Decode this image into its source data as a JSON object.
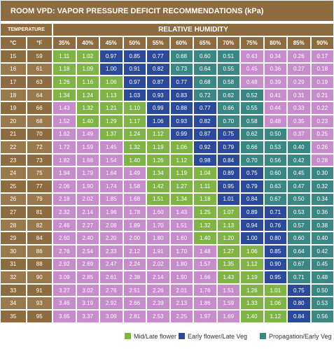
{
  "title": "ROOM VPD: VAPOR PRESSURE DEFICIT RECOMMENDATIONS (kPa)",
  "header": {
    "temperature": "TEMPERATURE",
    "humidity": "RELATIVE HUMIDITY",
    "units": [
      "°C",
      "°F"
    ],
    "columns": [
      "35%",
      "40%",
      "45%",
      "50%",
      "55%",
      "60%",
      "65%",
      "70%",
      "75%",
      "80%",
      "85%",
      "90%"
    ]
  },
  "palette": {
    "pink": "#c78ccb",
    "green": "#80b447",
    "blue": "#2c4a9a",
    "teal": "#3b8783"
  },
  "rows": [
    {
      "c": "15",
      "f": "59",
      "values": [
        "1.11",
        "1.02",
        "0.97",
        "0.85",
        "0.77",
        "0.68",
        "0.60",
        "0.51",
        "0.43",
        "0.34",
        "0.26",
        "0.17"
      ],
      "zones": [
        "green",
        "green",
        "blue",
        "blue",
        "blue",
        "teal",
        "teal",
        "teal",
        "pink",
        "pink",
        "pink",
        "pink"
      ]
    },
    {
      "c": "16",
      "f": "61",
      "values": [
        "1.18",
        "1.09",
        "1.00",
        "0.91",
        "0.82",
        "0.73",
        "0.64",
        "0.55",
        "0.45",
        "0.36",
        "0.27",
        "0.18"
      ],
      "zones": [
        "green",
        "green",
        "blue",
        "blue",
        "blue",
        "teal",
        "teal",
        "teal",
        "pink",
        "pink",
        "pink",
        "pink"
      ]
    },
    {
      "c": "17",
      "f": "63",
      "values": [
        "1.26",
        "1.16",
        "1.06",
        "0.97",
        "0.87",
        "0.77",
        "0.68",
        "0.58",
        "0.48",
        "0.39",
        "0.29",
        "0.19"
      ],
      "zones": [
        "green",
        "green",
        "green",
        "blue",
        "blue",
        "blue",
        "teal",
        "teal",
        "pink",
        "pink",
        "pink",
        "pink"
      ]
    },
    {
      "c": "18",
      "f": "64",
      "values": [
        "1.34",
        "1.24",
        "1.13",
        "1.03",
        "0.93",
        "0.83",
        "0.72",
        "0.62",
        "0.52",
        "0.41",
        "0.31",
        "0.21"
      ],
      "zones": [
        "green",
        "green",
        "green",
        "blue",
        "blue",
        "blue",
        "teal",
        "teal",
        "teal",
        "pink",
        "pink",
        "pink"
      ]
    },
    {
      "c": "19",
      "f": "66",
      "values": [
        "1.43",
        "1.32",
        "1.21",
        "1.10",
        "0.99",
        "0.88",
        "0.77",
        "0.66",
        "0.55",
        "0.44",
        "0.33",
        "0.22"
      ],
      "zones": [
        "pink",
        "green",
        "green",
        "green",
        "blue",
        "blue",
        "blue",
        "teal",
        "teal",
        "pink",
        "pink",
        "pink"
      ]
    },
    {
      "c": "20",
      "f": "68",
      "values": [
        "1.52",
        "1.40",
        "1.29",
        "1.17",
        "1.06",
        "0.93",
        "0.82",
        "0.70",
        "0.58",
        "0.48",
        "0.35",
        "0.23"
      ],
      "zones": [
        "pink",
        "green",
        "green",
        "green",
        "blue",
        "blue",
        "blue",
        "teal",
        "teal",
        "pink",
        "pink",
        "pink"
      ]
    },
    {
      "c": "21",
      "f": "70",
      "values": [
        "1.62",
        "1.49",
        "1.37",
        "1.24",
        "1.12",
        "0.99",
        "0.87",
        "0.75",
        "0.62",
        "0.50",
        "0.37",
        "0.25"
      ],
      "zones": [
        "pink",
        "pink",
        "green",
        "green",
        "green",
        "blue",
        "blue",
        "blue",
        "teal",
        "teal",
        "pink",
        "pink"
      ]
    },
    {
      "c": "22",
      "f": "72",
      "values": [
        "1.72",
        "1.59",
        "1.45",
        "1.32",
        "1.19",
        "1.06",
        "0.92",
        "0.79",
        "0.66",
        "0.53",
        "0.40",
        "0.26"
      ],
      "zones": [
        "pink",
        "pink",
        "pink",
        "green",
        "green",
        "green",
        "blue",
        "blue",
        "teal",
        "teal",
        "teal",
        "pink"
      ]
    },
    {
      "c": "23",
      "f": "73",
      "values": [
        "1.82",
        "1.68",
        "1.54",
        "1.40",
        "1.26",
        "1.12",
        "0.98",
        "0.84",
        "0.70",
        "0.56",
        "0.42",
        "0.28"
      ],
      "zones": [
        "pink",
        "pink",
        "pink",
        "green",
        "green",
        "green",
        "blue",
        "blue",
        "teal",
        "teal",
        "teal",
        "pink"
      ]
    },
    {
      "c": "24",
      "f": "75",
      "values": [
        "1.94",
        "1.79",
        "1.64",
        "1.49",
        "1.34",
        "1.19",
        "1.04",
        "0.89",
        "0.75",
        "0.60",
        "0.45",
        "0.30"
      ],
      "zones": [
        "pink",
        "pink",
        "pink",
        "pink",
        "green",
        "green",
        "green",
        "blue",
        "blue",
        "teal",
        "teal",
        "teal"
      ]
    },
    {
      "c": "25",
      "f": "77",
      "values": [
        "2.06",
        "1.90",
        "1.74",
        "1.58",
        "1.42",
        "1.27",
        "1.11",
        "0.95",
        "0.79",
        "0.63",
        "0.47",
        "0.32"
      ],
      "zones": [
        "pink",
        "pink",
        "pink",
        "pink",
        "green",
        "green",
        "green",
        "blue",
        "blue",
        "teal",
        "teal",
        "teal"
      ]
    },
    {
      "c": "26",
      "f": "79",
      "values": [
        "2.18",
        "2.02",
        "1.85",
        "1.68",
        "1.51",
        "1.34",
        "1.18",
        "1.01",
        "0.84",
        "0.67",
        "0.50",
        "0.34"
      ],
      "zones": [
        "pink",
        "pink",
        "pink",
        "pink",
        "green",
        "green",
        "green",
        "blue",
        "blue",
        "teal",
        "teal",
        "teal"
      ]
    },
    {
      "c": "27",
      "f": "81",
      "values": [
        "2.32",
        "2.14",
        "1.96",
        "1.78",
        "1.60",
        "1.43",
        "1.25",
        "1.07",
        "0.89",
        "0.71",
        "0.53",
        "0.36"
      ],
      "zones": [
        "pink",
        "pink",
        "pink",
        "pink",
        "pink",
        "pink",
        "green",
        "green",
        "blue",
        "blue",
        "teal",
        "teal"
      ]
    },
    {
      "c": "28",
      "f": "82",
      "values": [
        "2.46",
        "2.27",
        "2.08",
        "1.89",
        "1.70",
        "1.51",
        "1.32",
        "1.13",
        "0.94",
        "0.76",
        "0.57",
        "0.38"
      ],
      "zones": [
        "pink",
        "pink",
        "pink",
        "pink",
        "pink",
        "pink",
        "green",
        "green",
        "blue",
        "blue",
        "teal",
        "teal"
      ]
    },
    {
      "c": "29",
      "f": "84",
      "values": [
        "2.60",
        "2.40",
        "2.20",
        "2.00",
        "1.80",
        "1.60",
        "1.40",
        "1.20",
        "1.00",
        "0.80",
        "0.60",
        "0.40"
      ],
      "zones": [
        "pink",
        "pink",
        "pink",
        "pink",
        "pink",
        "pink",
        "green",
        "green",
        "blue",
        "blue",
        "teal",
        "teal"
      ]
    },
    {
      "c": "30",
      "f": "86",
      "values": [
        "2.76",
        "2.54",
        "2.33",
        "2.12",
        "1.91",
        "1.70",
        "1.48",
        "1.27",
        "1.06",
        "0.85",
        "0.64",
        "0.42"
      ],
      "zones": [
        "pink",
        "pink",
        "pink",
        "pink",
        "pink",
        "pink",
        "pink",
        "green",
        "green",
        "blue",
        "teal",
        "teal"
      ]
    },
    {
      "c": "31",
      "f": "88",
      "values": [
        "2.92",
        "2.69",
        "2.47",
        "2.24",
        "2.02",
        "1.80",
        "1.57",
        "1.35",
        "1.12",
        "0.90",
        "0.67",
        "0.45"
      ],
      "zones": [
        "pink",
        "pink",
        "pink",
        "pink",
        "pink",
        "pink",
        "pink",
        "green",
        "green",
        "blue",
        "teal",
        "teal"
      ]
    },
    {
      "c": "32",
      "f": "90",
      "values": [
        "3.09",
        "2.85",
        "2.61",
        "2.38",
        "2.14",
        "1.90",
        "1.66",
        "1.43",
        "1.19",
        "0.95",
        "0.71",
        "0.48"
      ],
      "zones": [
        "pink",
        "pink",
        "pink",
        "pink",
        "pink",
        "pink",
        "pink",
        "green",
        "green",
        "blue",
        "teal",
        "teal"
      ]
    },
    {
      "c": "33",
      "f": "91",
      "values": [
        "3.27",
        "3.02",
        "2.76",
        "2.51",
        "2.26",
        "2.01",
        "1.76",
        "1.51",
        "1.26",
        "1.01",
        "0.75",
        "0.50"
      ],
      "zones": [
        "pink",
        "pink",
        "pink",
        "pink",
        "pink",
        "pink",
        "pink",
        "pink",
        "green",
        "green",
        "blue",
        "teal"
      ]
    },
    {
      "c": "34",
      "f": "93",
      "values": [
        "3.46",
        "3.19",
        "2.92",
        "2.66",
        "2.39",
        "2.13",
        "1.86",
        "1.59",
        "1.33",
        "1.06",
        "0.80",
        "0.53"
      ],
      "zones": [
        "pink",
        "pink",
        "pink",
        "pink",
        "pink",
        "pink",
        "pink",
        "pink",
        "green",
        "green",
        "blue",
        "teal"
      ]
    },
    {
      "c": "35",
      "f": "95",
      "values": [
        "3.65",
        "3.37",
        "3.09",
        "2.81",
        "2.53",
        "2.25",
        "1.97",
        "1.69",
        "1.40",
        "1.12",
        "0.84",
        "0.56"
      ],
      "zones": [
        "pink",
        "pink",
        "pink",
        "pink",
        "pink",
        "pink",
        "pink",
        "pink",
        "green",
        "green",
        "blue",
        "teal"
      ]
    }
  ],
  "legend": [
    {
      "label": "Mid/Late flower",
      "zone": "green"
    },
    {
      "label": "Early flower/Late Veg",
      "zone": "blue"
    },
    {
      "label": "Propagation/Early Veg",
      "zone": "teal"
    }
  ]
}
